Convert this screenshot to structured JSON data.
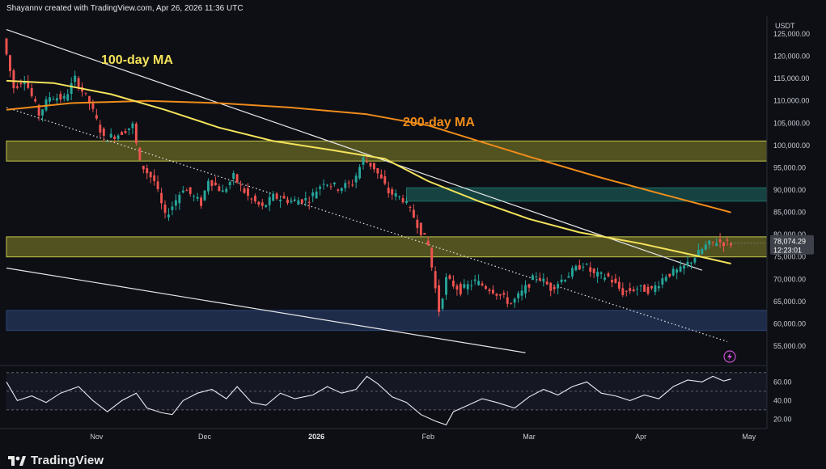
{
  "header": {
    "caption": "Shayannv created with TradingView.com, Apr 26, 2026 11:36 UTC"
  },
  "footer": {
    "brand": "TradingView"
  },
  "colors": {
    "background": "#0d0f15",
    "ma100": "#f5e35b",
    "ma200": "#f08c1a",
    "yellow_zone": "#8a8a2a",
    "teal_zone": "#1f6f66",
    "blue_zone": "#2d4677",
    "bull": "#26a69a",
    "bear": "#ef5350",
    "channel": "#e8e8e8",
    "rsi": "#e8e8f4"
  },
  "chart_data": {
    "type": "candlestick",
    "currency_label": "USDT",
    "y_ticks": [
      "125,000.00",
      "120,000.00",
      "115,000.00",
      "110,000.00",
      "105,000.00",
      "100,000.00",
      "95,000.00",
      "90,000.00",
      "85,000.00",
      "80,000.00",
      "75,000.00",
      "70,000.00",
      "65,000.00",
      "60,000.00",
      "55,000.00"
    ],
    "y_tick_values": [
      125000,
      120000,
      115000,
      110000,
      105000,
      100000,
      95000,
      90000,
      85000,
      80000,
      75000,
      70000,
      65000,
      60000,
      55000
    ],
    "ylim": [
      51000,
      129000
    ],
    "x_ticks": [
      {
        "label": "Nov",
        "date": "2025-11-01",
        "bold": false
      },
      {
        "label": "Dec",
        "date": "2025-12-01",
        "bold": false
      },
      {
        "label": "2026",
        "date": "2026-01-01",
        "bold": true
      },
      {
        "label": "Feb",
        "date": "2026-02-01",
        "bold": false
      },
      {
        "label": "Mar",
        "date": "2026-03-01",
        "bold": false
      },
      {
        "label": "Apr",
        "date": "2026-04-01",
        "bold": false
      },
      {
        "label": "May",
        "date": "2026-05-01",
        "bold": false
      }
    ],
    "xlim": [
      "2025-10-07",
      "2026-05-06"
    ],
    "last_price": {
      "value": 78074.29,
      "label": "78,074.29",
      "countdown": "12:23:01"
    },
    "price_path": [
      [
        "2025-10-07",
        124000
      ],
      [
        "2025-10-10",
        113000
      ],
      [
        "2025-10-13",
        115000
      ],
      [
        "2025-10-17",
        107000
      ],
      [
        "2025-10-20",
        111000
      ],
      [
        "2025-10-24",
        110500
      ],
      [
        "2025-10-27",
        115000
      ],
      [
        "2025-10-31",
        109500
      ],
      [
        "2025-11-04",
        101500
      ],
      [
        "2025-11-08",
        102500
      ],
      [
        "2025-11-12",
        104500
      ],
      [
        "2025-11-14",
        96000
      ],
      [
        "2025-11-18",
        92000
      ],
      [
        "2025-11-21",
        84000
      ],
      [
        "2025-11-23",
        86500
      ],
      [
        "2025-11-26",
        90500
      ],
      [
        "2025-12-01",
        87000
      ],
      [
        "2025-12-03",
        92500
      ],
      [
        "2025-12-07",
        89500
      ],
      [
        "2025-12-10",
        93000
      ],
      [
        "2025-12-14",
        88500
      ],
      [
        "2025-12-18",
        86000
      ],
      [
        "2025-12-21",
        88500
      ],
      [
        "2025-12-26",
        87500
      ],
      [
        "2025-12-31",
        88000
      ],
      [
        "2026-01-04",
        92000
      ],
      [
        "2026-01-08",
        90500
      ],
      [
        "2026-01-12",
        91500
      ],
      [
        "2026-01-15",
        97000
      ],
      [
        "2026-01-18",
        95000
      ],
      [
        "2026-01-22",
        89500
      ],
      [
        "2026-01-26",
        88000
      ],
      [
        "2026-01-29",
        84000
      ],
      [
        "2026-02-02",
        77500
      ],
      [
        "2026-02-05",
        63000
      ],
      [
        "2026-02-07",
        70000
      ],
      [
        "2026-02-11",
        67500
      ],
      [
        "2026-02-15",
        69500
      ],
      [
        "2026-02-20",
        67500
      ],
      [
        "2026-02-25",
        64500
      ],
      [
        "2026-02-28",
        67000
      ],
      [
        "2026-03-04",
        71000
      ],
      [
        "2026-03-08",
        68000
      ],
      [
        "2026-03-12",
        70500
      ],
      [
        "2026-03-17",
        73500
      ],
      [
        "2026-03-20",
        71000
      ],
      [
        "2026-03-24",
        70500
      ],
      [
        "2026-03-28",
        67000
      ],
      [
        "2026-04-01",
        68000
      ],
      [
        "2026-04-05",
        67500
      ],
      [
        "2026-04-09",
        71000
      ],
      [
        "2026-04-13",
        72000
      ],
      [
        "2026-04-17",
        75000
      ],
      [
        "2026-04-20",
        77500
      ],
      [
        "2026-04-23",
        78500
      ],
      [
        "2026-04-26",
        78074
      ]
    ],
    "ma100": {
      "label": "100-day MA",
      "points": [
        [
          "2025-10-07",
          114500
        ],
        [
          "2025-10-20",
          114000
        ],
        [
          "2025-11-05",
          111500
        ],
        [
          "2025-11-20",
          108000
        ],
        [
          "2025-12-05",
          104000
        ],
        [
          "2025-12-20",
          101000
        ],
        [
          "2026-01-05",
          99000
        ],
        [
          "2026-01-20",
          97000
        ],
        [
          "2026-02-01",
          92000
        ],
        [
          "2026-02-15",
          87500
        ],
        [
          "2026-03-01",
          83500
        ],
        [
          "2026-03-15",
          80500
        ],
        [
          "2026-04-01",
          78000
        ],
        [
          "2026-04-15",
          75500
        ],
        [
          "2026-04-26",
          73500
        ]
      ]
    },
    "ma200": {
      "label": "200-day MA",
      "points": [
        [
          "2025-10-07",
          108000
        ],
        [
          "2025-10-25",
          109500
        ],
        [
          "2025-11-15",
          110000
        ],
        [
          "2025-12-05",
          109500
        ],
        [
          "2025-12-25",
          108500
        ],
        [
          "2026-01-15",
          107000
        ],
        [
          "2026-02-01",
          104500
        ],
        [
          "2026-02-15",
          101000
        ],
        [
          "2026-03-01",
          97500
        ],
        [
          "2026-03-20",
          93000
        ],
        [
          "2026-04-05",
          89500
        ],
        [
          "2026-04-26",
          85000
        ]
      ]
    },
    "zones": [
      {
        "name": "yellow-zone-upper",
        "y": [
          96500,
          101000
        ],
        "x": [
          "2025-10-07",
          "2026-05-06"
        ],
        "color": "#8a8a2a"
      },
      {
        "name": "teal-zone",
        "y": [
          87500,
          90500
        ],
        "x": [
          "2026-01-26",
          "2026-05-06"
        ],
        "color": "#1f6f66"
      },
      {
        "name": "yellow-zone-lower",
        "y": [
          75000,
          79500
        ],
        "x": [
          "2025-10-07",
          "2026-05-06"
        ],
        "color": "#8a8a2a"
      },
      {
        "name": "blue-zone",
        "y": [
          58500,
          63000
        ],
        "x": [
          "2025-10-07",
          "2026-05-06"
        ],
        "color": "#2d4677"
      }
    ],
    "lines": [
      {
        "name": "channel-upper",
        "from": [
          "2025-10-07",
          126000
        ],
        "to": [
          "2026-04-18",
          72000
        ],
        "style": "solid"
      },
      {
        "name": "channel-lower",
        "from": [
          "2025-10-07",
          72500
        ],
        "to": [
          "2026-02-28",
          53500
        ],
        "style": "solid"
      },
      {
        "name": "channel-mid-dotted",
        "from": [
          "2025-10-07",
          108500
        ],
        "to": [
          "2026-04-25",
          56000
        ],
        "style": "dotted"
      }
    ],
    "rsi": {
      "y_ticks": [
        "60.00",
        "40.00",
        "20.00"
      ],
      "y_tick_values": [
        60,
        40,
        20
      ],
      "ylim": [
        10,
        75
      ],
      "band": [
        30,
        70
      ],
      "points": [
        [
          "2025-10-07",
          60
        ],
        [
          "2025-10-10",
          40
        ],
        [
          "2025-10-14",
          45
        ],
        [
          "2025-10-18",
          38
        ],
        [
          "2025-10-22",
          48
        ],
        [
          "2025-10-27",
          55
        ],
        [
          "2025-10-31",
          40
        ],
        [
          "2025-11-04",
          28
        ],
        [
          "2025-11-08",
          40
        ],
        [
          "2025-11-12",
          48
        ],
        [
          "2025-11-15",
          32
        ],
        [
          "2025-11-19",
          27
        ],
        [
          "2025-11-22",
          25
        ],
        [
          "2025-11-25",
          40
        ],
        [
          "2025-11-29",
          48
        ],
        [
          "2025-12-03",
          52
        ],
        [
          "2025-12-07",
          42
        ],
        [
          "2025-12-10",
          55
        ],
        [
          "2025-12-14",
          38
        ],
        [
          "2025-12-18",
          35
        ],
        [
          "2025-12-22",
          48
        ],
        [
          "2025-12-26",
          42
        ],
        [
          "2025-12-31",
          46
        ],
        [
          "2026-01-04",
          55
        ],
        [
          "2026-01-08",
          48
        ],
        [
          "2026-01-12",
          52
        ],
        [
          "2026-01-15",
          66
        ],
        [
          "2026-01-18",
          58
        ],
        [
          "2026-01-22",
          44
        ],
        [
          "2026-01-26",
          38
        ],
        [
          "2026-01-30",
          25
        ],
        [
          "2026-02-03",
          18
        ],
        [
          "2026-02-06",
          14
        ],
        [
          "2026-02-08",
          28
        ],
        [
          "2026-02-12",
          35
        ],
        [
          "2026-02-16",
          42
        ],
        [
          "2026-02-20",
          38
        ],
        [
          "2026-02-25",
          32
        ],
        [
          "2026-03-01",
          44
        ],
        [
          "2026-03-05",
          52
        ],
        [
          "2026-03-09",
          46
        ],
        [
          "2026-03-13",
          55
        ],
        [
          "2026-03-17",
          60
        ],
        [
          "2026-03-21",
          48
        ],
        [
          "2026-03-25",
          45
        ],
        [
          "2026-03-29",
          40
        ],
        [
          "2026-04-02",
          46
        ],
        [
          "2026-04-06",
          42
        ],
        [
          "2026-04-10",
          55
        ],
        [
          "2026-04-14",
          62
        ],
        [
          "2026-04-18",
          60
        ],
        [
          "2026-04-21",
          66
        ],
        [
          "2026-04-24",
          61
        ],
        [
          "2026-04-26",
          63
        ]
      ]
    }
  }
}
